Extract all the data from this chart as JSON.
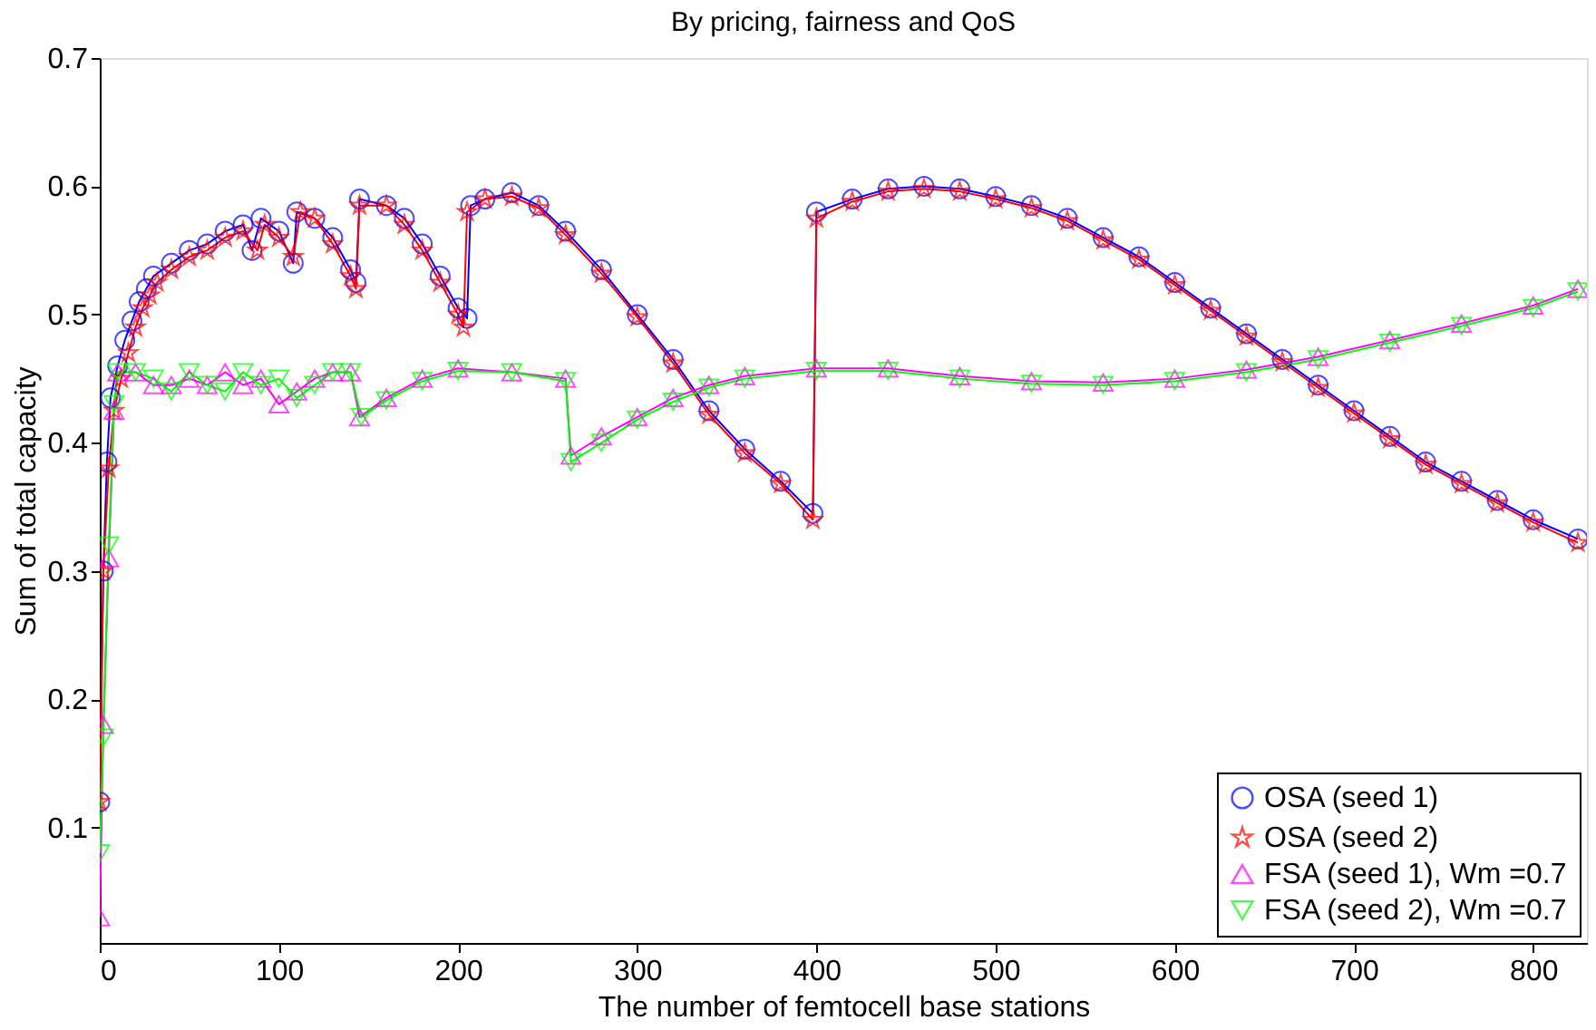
{
  "chart_data": {
    "type": "line",
    "title": "By pricing, fairness and QoS",
    "xlabel": "The number of femtocell base stations",
    "ylabel": "Sum of total capacity",
    "xlim": [
      0,
      830
    ],
    "ylim": [
      0.01,
      0.7
    ],
    "xticks": [
      0,
      100,
      200,
      300,
      400,
      500,
      600,
      700,
      800
    ],
    "yticks": [
      0.1,
      0.2,
      0.3,
      0.4,
      0.5,
      0.6,
      0.7
    ],
    "grid": false,
    "legend": "bottom right",
    "line_style": "solid",
    "series": [
      {
        "name": "OSA (seed 1)",
        "color": "#0000ff",
        "marker": "circle",
        "x": [
          0,
          2,
          4,
          6,
          10,
          14,
          18,
          22,
          26,
          30,
          40,
          50,
          60,
          70,
          80,
          85,
          90,
          100,
          108,
          110,
          120,
          130,
          140,
          143,
          145,
          160,
          170,
          180,
          190,
          200,
          205,
          207,
          215,
          230,
          245,
          260,
          280,
          300,
          320,
          340,
          360,
          380,
          398,
          400,
          420,
          440,
          460,
          480,
          500,
          520,
          540,
          560,
          580,
          600,
          620,
          640,
          660,
          680,
          700,
          720,
          740,
          760,
          780,
          800,
          825
        ],
        "values": [
          0.12,
          0.3,
          0.385,
          0.435,
          0.46,
          0.48,
          0.495,
          0.51,
          0.52,
          0.53,
          0.54,
          0.55,
          0.555,
          0.565,
          0.57,
          0.55,
          0.575,
          0.565,
          0.54,
          0.58,
          0.575,
          0.56,
          0.535,
          0.525,
          0.59,
          0.585,
          0.575,
          0.555,
          0.53,
          0.505,
          0.497,
          0.585,
          0.59,
          0.595,
          0.585,
          0.565,
          0.535,
          0.5,
          0.465,
          0.425,
          0.395,
          0.37,
          0.345,
          0.58,
          0.59,
          0.598,
          0.6,
          0.598,
          0.592,
          0.585,
          0.575,
          0.56,
          0.545,
          0.525,
          0.505,
          0.485,
          0.465,
          0.445,
          0.425,
          0.405,
          0.385,
          0.37,
          0.355,
          0.34,
          0.325
        ]
      },
      {
        "name": "OSA (seed 2)",
        "color": "#ff0000",
        "marker": "star",
        "x": [
          0,
          2,
          5,
          8,
          12,
          16,
          20,
          24,
          28,
          32,
          40,
          50,
          60,
          70,
          80,
          88,
          92,
          100,
          108,
          112,
          120,
          130,
          140,
          143,
          145,
          160,
          170,
          180,
          190,
          200,
          203,
          205,
          215,
          230,
          245,
          260,
          280,
          300,
          320,
          340,
          360,
          380,
          398,
          400,
          420,
          440,
          460,
          480,
          500,
          520,
          540,
          560,
          580,
          600,
          620,
          640,
          660,
          680,
          700,
          720,
          740,
          760,
          780,
          800,
          825
        ],
        "values": [
          0.12,
          0.3,
          0.38,
          0.425,
          0.45,
          0.47,
          0.49,
          0.505,
          0.515,
          0.525,
          0.535,
          0.545,
          0.55,
          0.56,
          0.565,
          0.55,
          0.57,
          0.56,
          0.545,
          0.58,
          0.575,
          0.555,
          0.53,
          0.52,
          0.585,
          0.585,
          0.57,
          0.55,
          0.525,
          0.5,
          0.49,
          0.58,
          0.59,
          0.592,
          0.583,
          0.562,
          0.532,
          0.498,
          0.462,
          0.422,
          0.392,
          0.368,
          0.34,
          0.575,
          0.588,
          0.596,
          0.598,
          0.596,
          0.59,
          0.583,
          0.573,
          0.558,
          0.543,
          0.523,
          0.503,
          0.483,
          0.463,
          0.443,
          0.423,
          0.403,
          0.383,
          0.368,
          0.353,
          0.338,
          0.322
        ]
      },
      {
        "name": "FSA (seed 1), Wm =0.7",
        "color": "#ff00ff",
        "marker": "triangle",
        "x": [
          0,
          2,
          5,
          8,
          10,
          20,
          30,
          40,
          50,
          60,
          70,
          80,
          90,
          100,
          110,
          120,
          130,
          140,
          145,
          160,
          180,
          200,
          230,
          260,
          263,
          280,
          300,
          320,
          340,
          360,
          400,
          440,
          480,
          520,
          560,
          600,
          640,
          680,
          720,
          760,
          800,
          825
        ],
        "values": [
          0.03,
          0.18,
          0.31,
          0.425,
          0.455,
          0.455,
          0.445,
          0.445,
          0.45,
          0.445,
          0.455,
          0.445,
          0.45,
          0.43,
          0.44,
          0.45,
          0.455,
          0.455,
          0.42,
          0.435,
          0.45,
          0.458,
          0.455,
          0.45,
          0.39,
          0.405,
          0.42,
          0.435,
          0.445,
          0.452,
          0.458,
          0.458,
          0.452,
          0.448,
          0.447,
          0.45,
          0.457,
          0.467,
          0.48,
          0.493,
          0.507,
          0.52
        ]
      },
      {
        "name": "FSA (seed 2), Wm =0.7",
        "color": "#00ff00",
        "marker": "triangle-down",
        "x": [
          0,
          2,
          5,
          8,
          10,
          20,
          30,
          40,
          50,
          60,
          70,
          80,
          90,
          100,
          110,
          120,
          130,
          140,
          146,
          160,
          180,
          200,
          230,
          260,
          263,
          280,
          300,
          320,
          340,
          360,
          400,
          440,
          480,
          520,
          560,
          600,
          640,
          680,
          720,
          760,
          800,
          825
        ],
        "values": [
          0.08,
          0.17,
          0.32,
          0.43,
          0.455,
          0.455,
          0.45,
          0.44,
          0.455,
          0.445,
          0.44,
          0.455,
          0.445,
          0.45,
          0.435,
          0.445,
          0.455,
          0.455,
          0.42,
          0.433,
          0.448,
          0.456,
          0.455,
          0.448,
          0.385,
          0.4,
          0.418,
          0.432,
          0.443,
          0.45,
          0.456,
          0.456,
          0.45,
          0.446,
          0.445,
          0.448,
          0.455,
          0.465,
          0.478,
          0.491,
          0.505,
          0.518
        ]
      }
    ]
  }
}
